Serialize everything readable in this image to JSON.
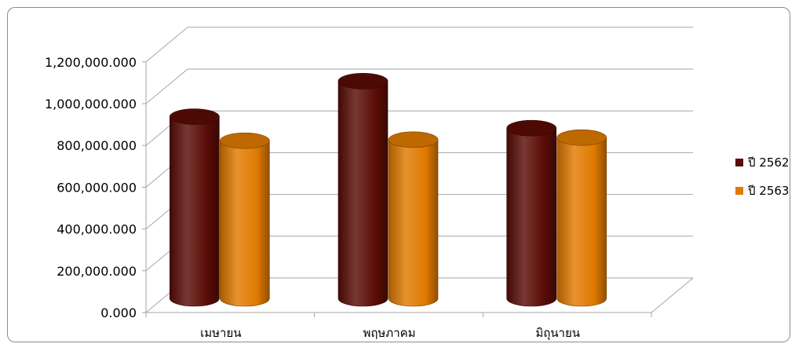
{
  "chart_data": {
    "type": "bar",
    "categories": [
      "เมษายน",
      "พฤษภาคม",
      "มิถุนายน"
    ],
    "series": [
      {
        "name": "ปี 2562",
        "values": [
          870000,
          1040000,
          815000
        ]
      },
      {
        "name": "ปี 2563",
        "values": [
          755000,
          760000,
          770000
        ]
      }
    ],
    "y_ticks": [
      "0.000",
      "200,000.000",
      "400,000.000",
      "600,000.000",
      "800,000.000",
      "1,000,000.000",
      "1,200,000.000"
    ],
    "ylim": [
      0,
      1200000
    ],
    "title": "",
    "xlabel": "",
    "ylabel": "",
    "grid": true,
    "legend_position": "right",
    "bar_shape": "3d-cylinder"
  },
  "colors": {
    "series_2562": "#5a0c06",
    "series_2563": "#e07a00",
    "grid": "#a6a6a6",
    "frame": "#8c8c8c"
  }
}
